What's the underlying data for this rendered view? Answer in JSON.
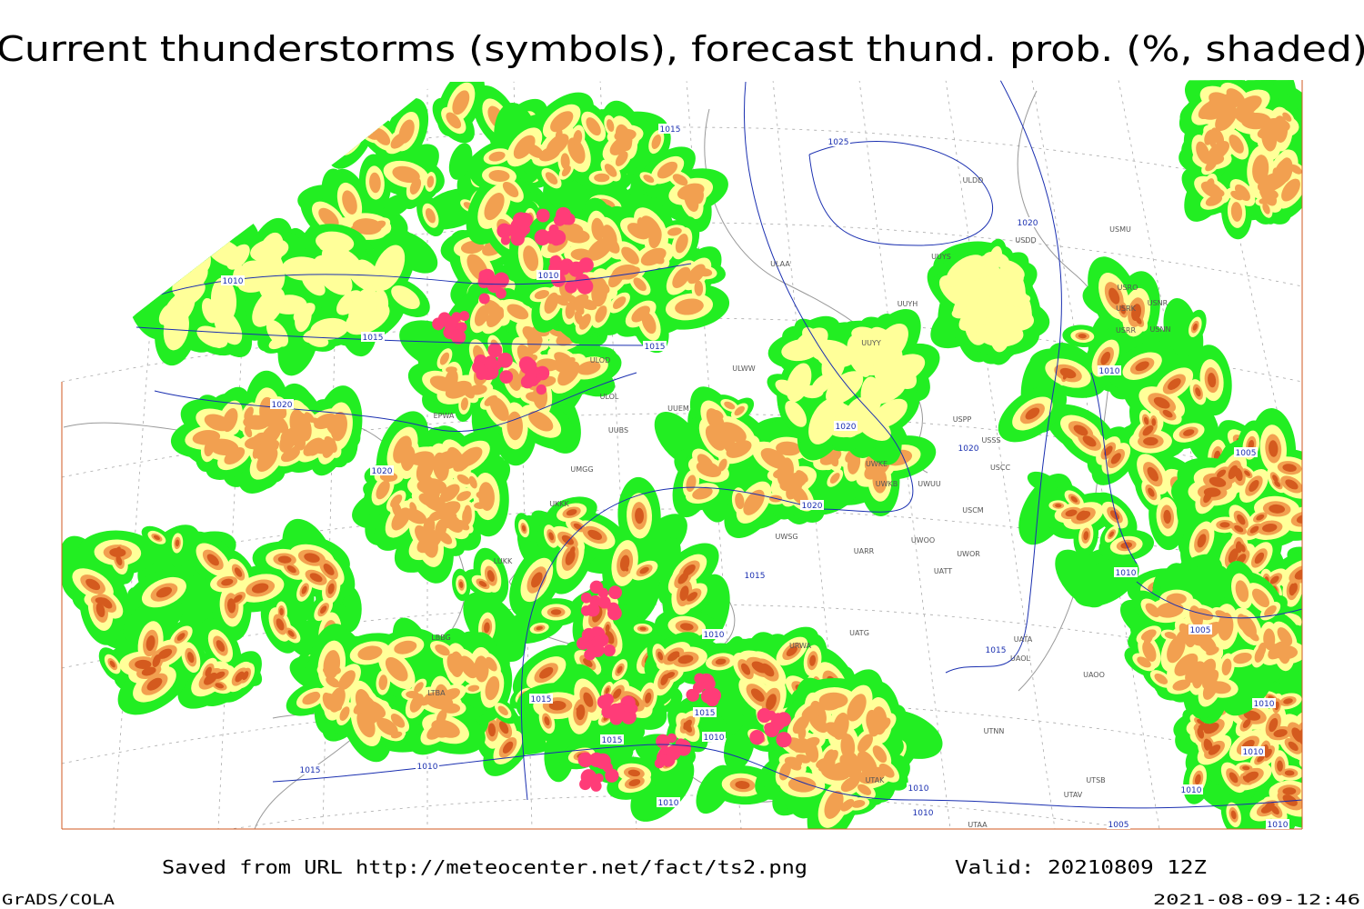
{
  "header": {
    "title": "Current thunderstorms (symbols), forecast thund. prob. (%, shaded)"
  },
  "footer": {
    "source": "Saved from URL http://meteocenter.net/fact/ts2.png",
    "valid": "Valid: 20210809 12Z",
    "software": "GrADS/COLA",
    "timestamp": "2021-08-09-12:46"
  },
  "isobar_labels": [
    "1015",
    "1025",
    "1020",
    "1010",
    "1010",
    "1015",
    "1015",
    "1020",
    "1020",
    "1010",
    "1020",
    "1020",
    "1005",
    "1020",
    "1015",
    "1010",
    "1005",
    "1010",
    "1015",
    "1015",
    "1015",
    "1010",
    "1015",
    "1010",
    "1010",
    "1015",
    "1010",
    "1010",
    "1010",
    "1010",
    "1005",
    "1010",
    "1010"
  ],
  "stations": [
    "ULDD",
    "USDD",
    "USMU",
    "ULAA",
    "UUYS",
    "UUYH",
    "USRO",
    "USRK",
    "USNR",
    "USRR",
    "USNN",
    "UUYY",
    "ULWW",
    "ULOD",
    "ULOL",
    "UUEM",
    "EPWA",
    "UUBS",
    "USPP",
    "USSS",
    "UWKE",
    "UWKB",
    "UWUU",
    "USCC",
    "UMGG",
    "UKKK",
    "USCM",
    "UWSG",
    "UARR",
    "UWOO",
    "UWOR",
    "UATT",
    "LUKK",
    "URWA",
    "UATG",
    "UAOL",
    "UAOO",
    "UATA",
    "UTNN",
    "UTAK",
    "UTSB",
    "UTAV",
    "UTAA",
    "LBBG",
    "LTBA"
  ]
}
